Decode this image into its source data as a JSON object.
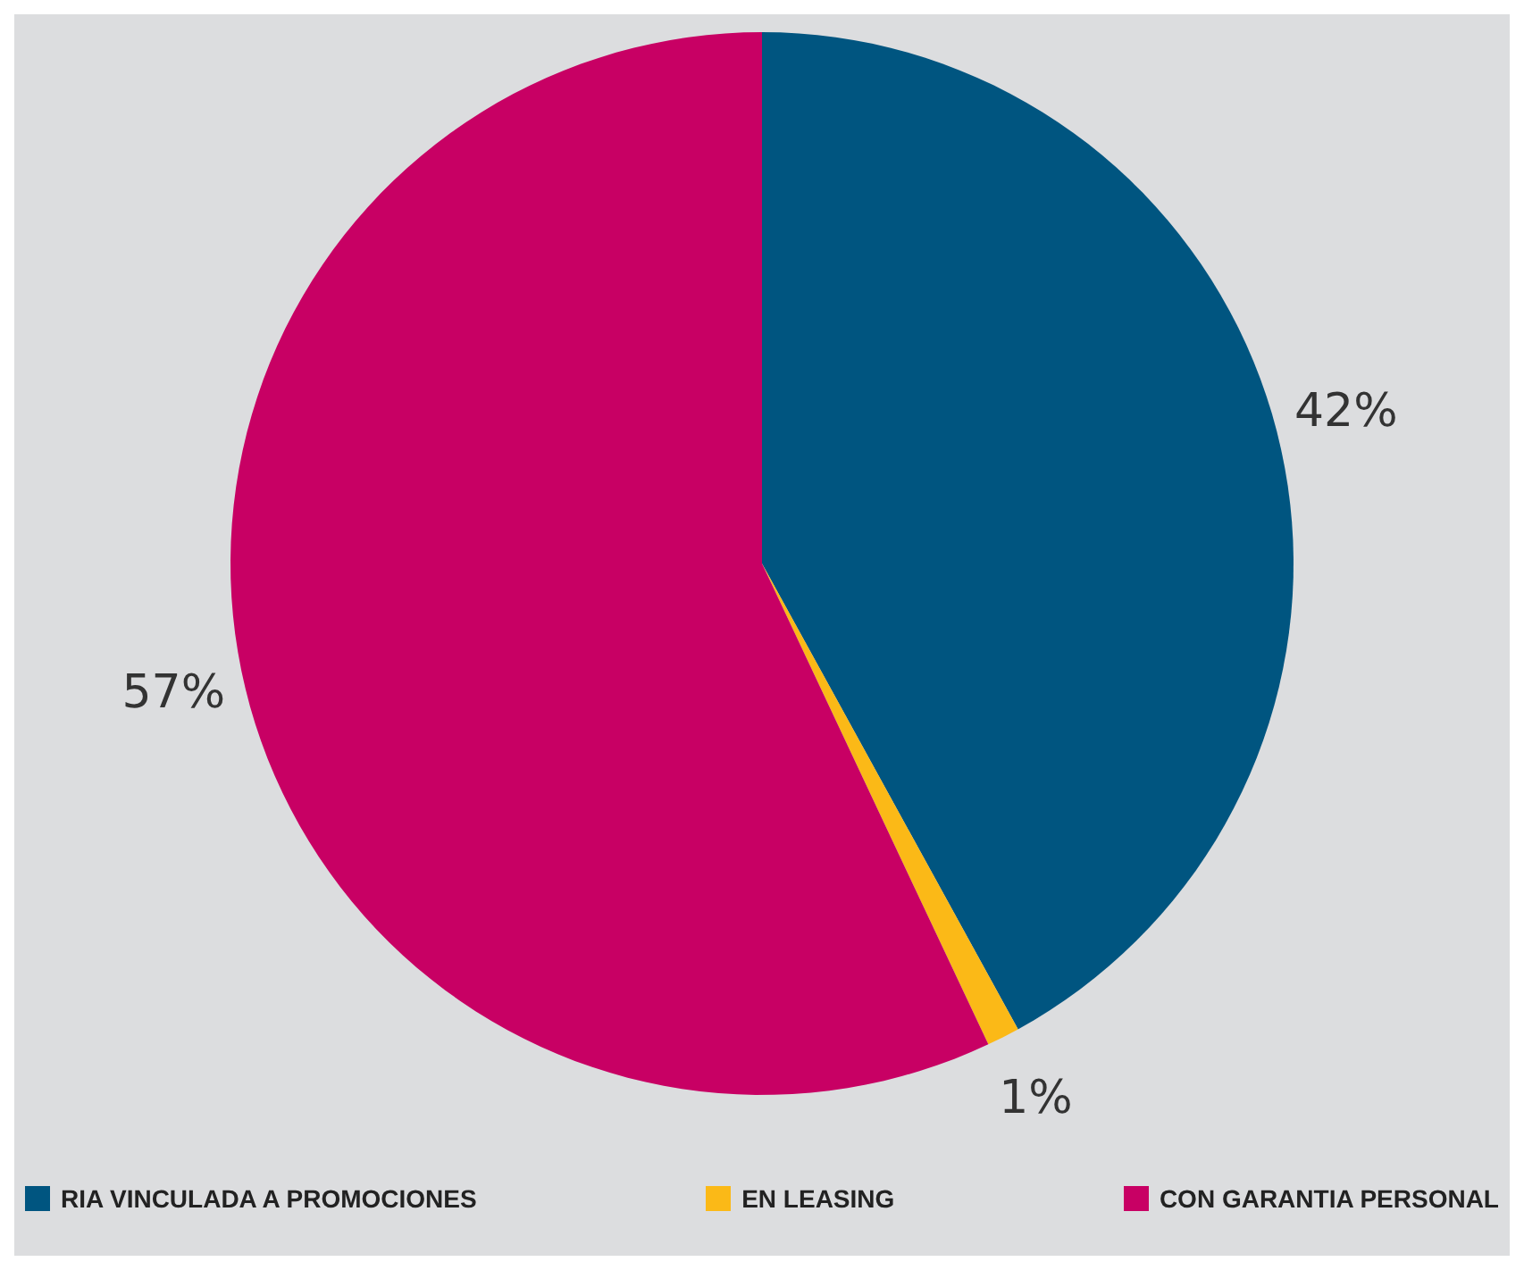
{
  "chart_data": {
    "type": "pie",
    "categories": [
      "RIA VINCULADA A PROMOCIONES",
      "EN LEASING",
      "CON GARANTIA PERSONAL"
    ],
    "values": [
      42,
      1,
      57
    ],
    "value_labels": [
      "42%",
      "1%",
      "57%"
    ],
    "colors": [
      "#005580",
      "#fbb917",
      "#c80064"
    ],
    "legend": "bottom"
  }
}
